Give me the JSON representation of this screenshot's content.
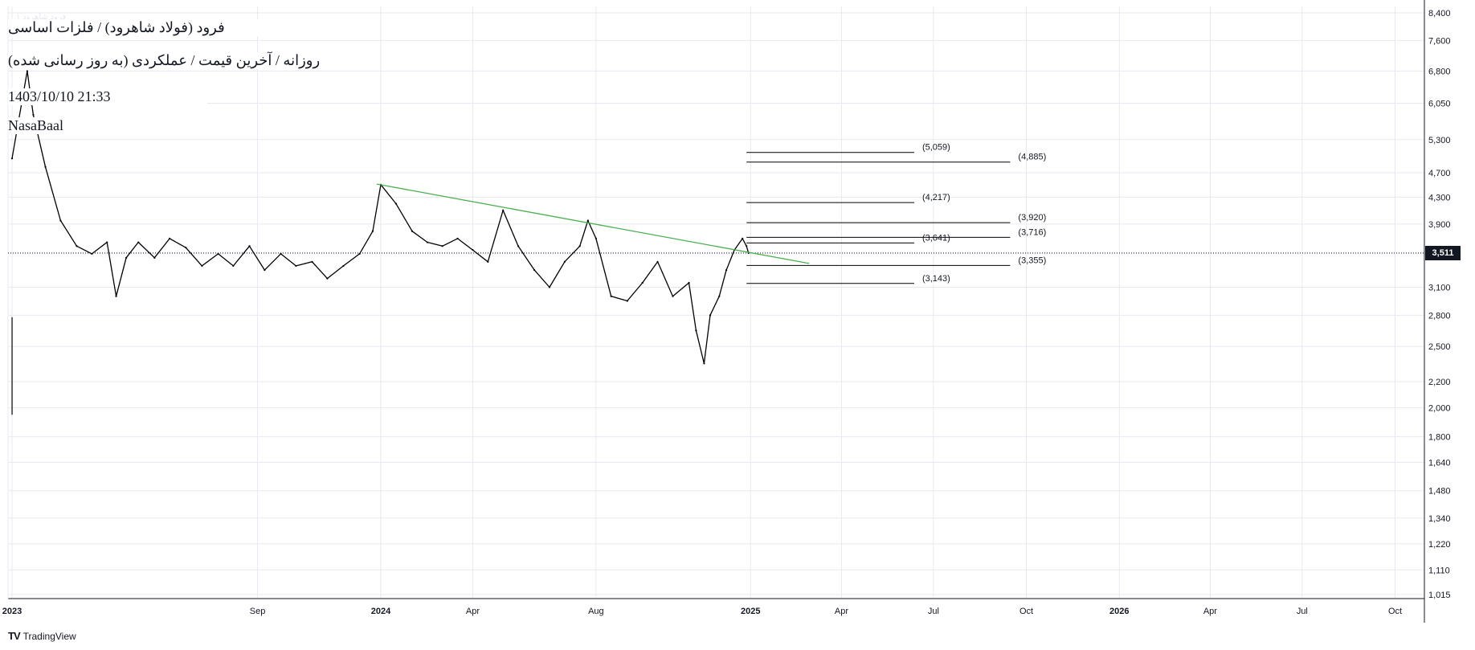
{
  "header": {
    "ghost_label": "فرود شاهرود ۱",
    "title": "فرود (فولاد شاهرود) / فلزات اساسی",
    "subtitle": "روزانه / آخرین قیمت / عملکردی (به روز رسانی شده)",
    "datetime": "1403/10/10 21:33",
    "author": "NasaBaal"
  },
  "branding": {
    "logo": "TV",
    "name": "TradingView"
  },
  "colors": {
    "candle": "#000000",
    "trendline": "#4caf50",
    "grid": "#e6eaf0",
    "axis": "#131722",
    "price_tag_bg": "#131722"
  },
  "chart_data": {
    "type": "line",
    "y_scale": "log",
    "ylim": [
      1000,
      8600
    ],
    "xlim": [
      "2022-12-28",
      "2026-10-30"
    ],
    "y_ticks": [
      8400,
      7600,
      6800,
      6050,
      5300,
      4700,
      4300,
      3900,
      3500,
      3100,
      2800,
      2500,
      2200,
      2000,
      1800,
      1640,
      1480,
      1340,
      1220,
      1110,
      1015
    ],
    "y_tick_labels": [
      "8,400",
      "7,600",
      "6,800",
      "6,050",
      "5,300",
      "4,700",
      "4,300",
      "3,900",
      "3,500",
      "3,100",
      "2,800",
      "2,500",
      "2,200",
      "2,000",
      "1,800",
      "1,640",
      "1,480",
      "1,340",
      "1,220",
      "1,110",
      "1,015"
    ],
    "x_ticks": [
      {
        "date": "2023-01-01",
        "label": "2023",
        "bold": true
      },
      {
        "date": "2023-09-01",
        "label": "Sep",
        "bold": false
      },
      {
        "date": "2024-01-01",
        "label": "2024",
        "bold": true
      },
      {
        "date": "2024-04-01",
        "label": "Apr",
        "bold": false
      },
      {
        "date": "2024-08-01",
        "label": "Aug",
        "bold": false
      },
      {
        "date": "2025-01-01",
        "label": "2025",
        "bold": true
      },
      {
        "date": "2025-04-01",
        "label": "Apr",
        "bold": false
      },
      {
        "date": "2025-07-01",
        "label": "Jul",
        "bold": false
      },
      {
        "date": "2025-10-01",
        "label": "Oct",
        "bold": false
      },
      {
        "date": "2026-01-01",
        "label": "2026",
        "bold": true
      },
      {
        "date": "2026-04-01",
        "label": "Apr",
        "bold": false
      },
      {
        "date": "2026-07-01",
        "label": "Jul",
        "bold": false
      },
      {
        "date": "2026-10-01",
        "label": "Oct",
        "bold": false
      }
    ],
    "series": [
      {
        "x": [
          "2023-01-01",
          "2023-01-16",
          "2023-01-22",
          "2023-02-03",
          "2023-02-18",
          "2023-03-06",
          "2023-03-21",
          "2023-04-05",
          "2023-04-14",
          "2023-04-24",
          "2023-05-06",
          "2023-05-22",
          "2023-06-06",
          "2023-06-22",
          "2023-07-08",
          "2023-07-24",
          "2023-08-08",
          "2023-08-24",
          "2023-09-08",
          "2023-09-24",
          "2023-10-09",
          "2023-10-25",
          "2023-11-09",
          "2023-11-25",
          "2023-12-11",
          "2023-12-24",
          "2024-01-01",
          "2024-01-16",
          "2024-02-01",
          "2024-02-16",
          "2024-03-02",
          "2024-03-17",
          "2024-04-01",
          "2024-04-16",
          "2024-05-01",
          "2024-05-16",
          "2024-06-01",
          "2024-06-16",
          "2024-07-01",
          "2024-07-16",
          "2024-07-24",
          "2024-08-01",
          "2024-08-16",
          "2024-09-01",
          "2024-09-16",
          "2024-10-01",
          "2024-10-16",
          "2024-11-01",
          "2024-11-08",
          "2024-11-16",
          "2024-11-22",
          "2024-12-01",
          "2024-12-08",
          "2024-12-16",
          "2024-12-24",
          "2024-12-28",
          "2024-12-30"
        ],
        "y": [
          4950,
          6800,
          5800,
          4800,
          3950,
          3600,
          3500,
          3650,
          3000,
          3450,
          3650,
          3450,
          3700,
          3580,
          3350,
          3500,
          3350,
          3600,
          3300,
          3500,
          3350,
          3400,
          3200,
          3350,
          3500,
          3800,
          4500,
          4200,
          3800,
          3650,
          3600,
          3700,
          3550,
          3400,
          4100,
          3600,
          3300,
          3100,
          3400,
          3600,
          3950,
          3700,
          3000,
          2950,
          3150,
          3400,
          3000,
          3150,
          2650,
          2350,
          2800,
          3000,
          3300,
          3550,
          3700,
          3600,
          3511
        ]
      }
    ],
    "trendline": {
      "from": {
        "x": "2023-12-28",
        "y": 4510
      },
      "to": {
        "x": "2025-02-28",
        "y": 3380
      }
    },
    "spike": {
      "x": "2023-01-01",
      "y_low": 1950,
      "y_high": 2780
    },
    "current_price": {
      "value": 3511,
      "label": "3,511"
    },
    "levels": [
      {
        "value": 5059,
        "label": "(5,059)",
        "to": "2025-06-12"
      },
      {
        "value": 4885,
        "label": "(4,885)",
        "to": "2025-09-15"
      },
      {
        "value": 4217,
        "label": "(4,217)",
        "to": "2025-06-12"
      },
      {
        "value": 3920,
        "label": "(3,920)",
        "to": "2025-09-15"
      },
      {
        "value": 3716,
        "label": "(3,716)",
        "to": "2025-09-15"
      },
      {
        "value": 3641,
        "label": "(3,641)",
        "to": "2025-06-12"
      },
      {
        "value": 3355,
        "label": "(3,355)",
        "to": "2025-09-15"
      },
      {
        "value": 3143,
        "label": "(3,143)",
        "to": "2025-06-12"
      }
    ],
    "levels_start": "2024-12-28",
    "grid": true
  }
}
